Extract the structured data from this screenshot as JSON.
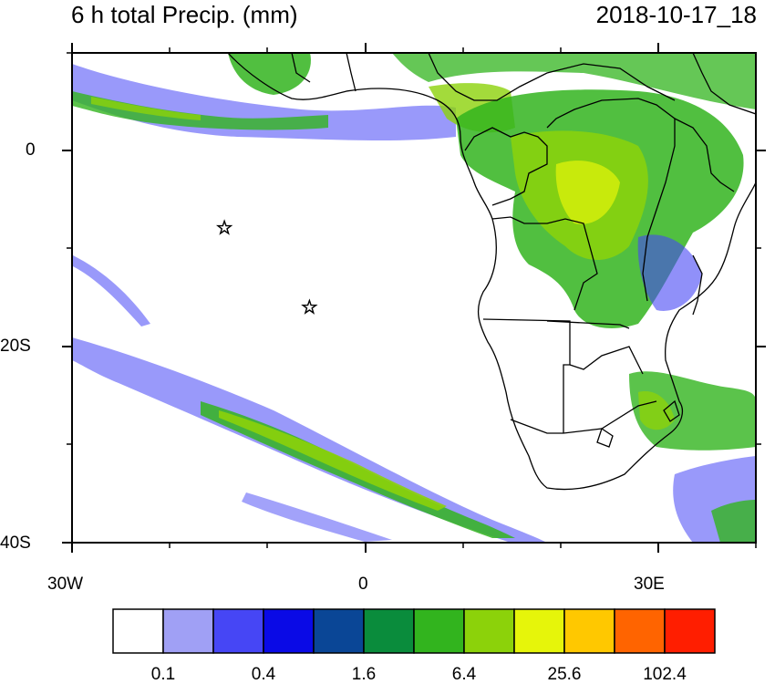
{
  "title_left": "6 h total Precip. (mm)",
  "title_right": "2018-10-17_18",
  "lat_labels": [
    "0",
    "20S",
    "40S"
  ],
  "lon_labels": [
    "30W",
    "0",
    "30E"
  ],
  "colorbar": {
    "colors": [
      "#ffffff",
      "#a0a0f5",
      "#4646f5",
      "#0a0ae6",
      "#0a4696",
      "#0a8c3c",
      "#32b41e",
      "#8cd20a",
      "#e6f50a",
      "#ffc800",
      "#ff6400",
      "#ff1e00"
    ],
    "labels": [
      "0.1",
      "0.4",
      "1.6",
      "6.4",
      "25.6",
      "102.4"
    ]
  },
  "markers": [
    {
      "name": "star",
      "lon": -14.4,
      "lat": -7.9
    },
    {
      "name": "star",
      "lon": -5.7,
      "lat": -16.0
    }
  ]
}
